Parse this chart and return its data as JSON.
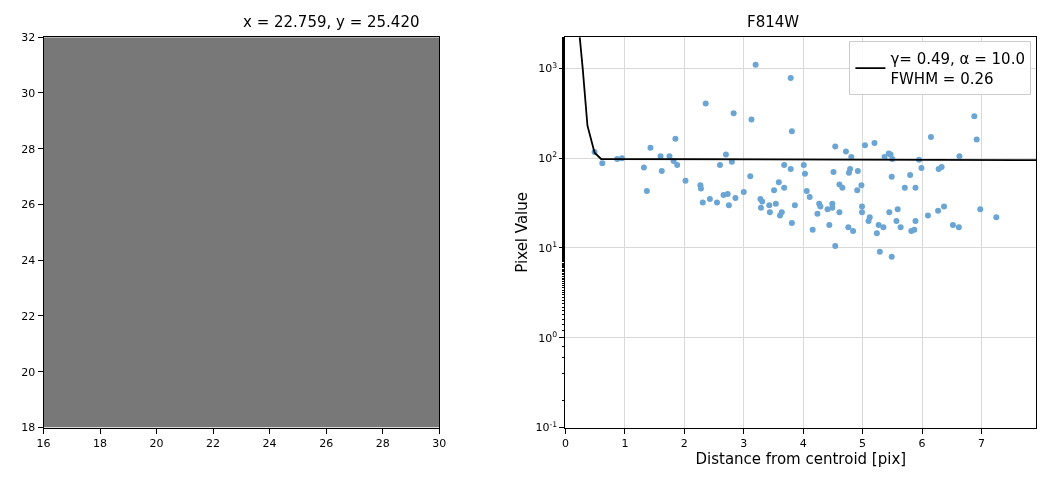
{
  "chart_data": [
    {
      "type": "heatmap",
      "title": "x = 22.759, y = 25.420",
      "xlim": [
        16,
        30
      ],
      "ylim": [
        18,
        32
      ],
      "xticks": [
        16,
        18,
        20,
        22,
        24,
        26,
        28,
        30
      ],
      "yticks": [
        18,
        20,
        22,
        24,
        26,
        28,
        30,
        32
      ],
      "grid": false
    },
    {
      "type": "scatter",
      "title": "F814W",
      "xlabel": "Distance from centroid [pix]",
      "ylabel": "Pixel Value",
      "log": "y",
      "grid": true,
      "legend": "top right",
      "xlim": [
        0,
        7.92
      ],
      "xticks": [
        0,
        1,
        2,
        3,
        4,
        5,
        6,
        7
      ],
      "ylim": [
        0.1,
        2230
      ],
      "yticks": [
        {
          "value": 0.1,
          "label": "10$^{-1}$"
        },
        {
          "value": 1,
          "label": "10$^{0}$"
        },
        {
          "value": 10,
          "label": "10$^{1}$"
        },
        {
          "value": 100,
          "label": "10$^{2}$"
        },
        {
          "value": 1000,
          "label": "10$^{3}$"
        }
      ],
      "series": [
        {
          "type": "scatter",
          "color": "#6ba5d4",
          "marker": "circle",
          "x": [
            0.49,
            0.62,
            0.87,
            0.95,
            1.32,
            1.37,
            1.43,
            1.6,
            1.62,
            1.75,
            1.85,
            1.82,
            1.88,
            2.02,
            2.27,
            2.28,
            2.31,
            2.36,
            2.43,
            2.55,
            2.6,
            2.66,
            2.7,
            2.73,
            2.75,
            2.8,
            2.83,
            2.86,
            3.0,
            3.11,
            3.13,
            3.2,
            3.28,
            3.29,
            3.31,
            3.43,
            3.44,
            3.51,
            3.54,
            3.59,
            3.61,
            3.64,
            3.68,
            3.68,
            3.79,
            3.79,
            3.81,
            3.81,
            3.86,
            4.01,
            4.03,
            4.06,
            4.11,
            4.16,
            4.24,
            4.27,
            4.29,
            4.41,
            4.44,
            4.49,
            4.49,
            4.51,
            4.54,
            4.54,
            4.61,
            4.61,
            4.66,
            4.72,
            4.76,
            4.77,
            4.79,
            4.81,
            4.84,
            4.91,
            4.92,
            4.98,
            4.99,
            4.99,
            5.04,
            5.1,
            5.12,
            5.2,
            5.24,
            5.27,
            5.29,
            5.35,
            5.37,
            5.44,
            5.45,
            5.47,
            5.49,
            5.5,
            5.49,
            5.57,
            5.59,
            5.64,
            5.71,
            5.8,
            5.82,
            5.87,
            5.89,
            5.89,
            5.95,
            5.99,
            6.1,
            6.15,
            6.27,
            6.28,
            6.33,
            6.37,
            6.52,
            6.62,
            6.63,
            6.88,
            6.92,
            6.98,
            7.25
          ],
          "values": [
            117,
            88,
            98,
            100,
            79,
            43,
            131,
            105,
            72,
            105,
            165,
            93,
            84,
            56,
            50,
            46,
            32,
            407,
            35,
            32,
            84,
            39,
            110,
            40,
            30,
            91,
            316,
            36,
            42,
            63,
            270,
            1100,
            35,
            28,
            33,
            30,
            25,
            44,
            31,
            54,
            23,
            25,
            84,
            47,
            76,
            780,
            200,
            19,
            30,
            84,
            67,
            43,
            37,
            16,
            24,
            31,
            29,
            27,
            18,
            31,
            28,
            70,
            135,
            10.5,
            25,
            51,
            47,
            119,
            17,
            69,
            76,
            103,
            15.5,
            44,
            72,
            50,
            29,
            25,
            139,
            20,
            22,
            148,
            14.6,
            18,
            9.1,
            17,
            103,
            113,
            25,
            110,
            62,
            98,
            8,
            20,
            27,
            17,
            47,
            65,
            15.5,
            16,
            47,
            20,
            96,
            78,
            23,
            172,
            26,
            76,
            80,
            29,
            18,
            17,
            105,
            293,
            161,
            27,
            22
          ]
        },
        {
          "type": "line",
          "name": "γ= 0.49, α = 10.0\nFWHM = 0.26",
          "color": "#000000",
          "marker": "none",
          "line_style": "solid",
          "x": [
            0.24,
            0.29,
            0.37,
            0.49,
            0.6,
            7.92
          ],
          "values": [
            2230,
            1000,
            230,
            115,
            98,
            95
          ]
        }
      ]
    }
  ]
}
